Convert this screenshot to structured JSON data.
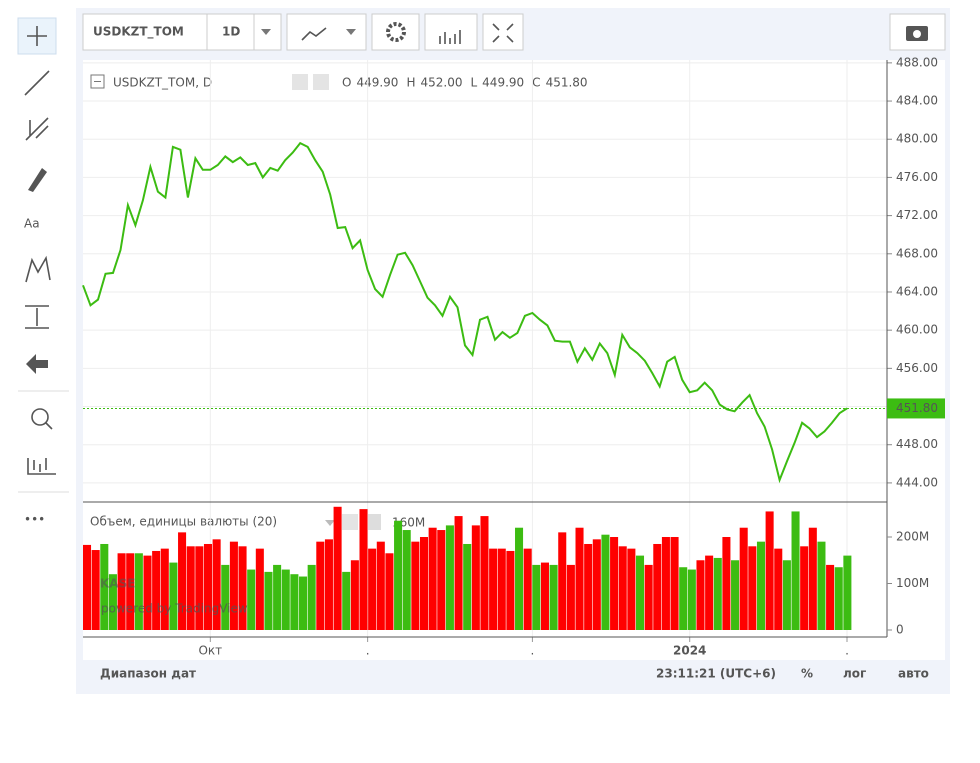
{
  "toolbar": {
    "symbol": "USDKZT_TOM",
    "interval": "1D"
  },
  "header": {
    "title": "USDKZT_TOM, D",
    "ohlc": [
      {
        "key": "O",
        "value": "449.90"
      },
      {
        "key": "H",
        "value": "452.00"
      },
      {
        "key": "L",
        "value": "449.90"
      },
      {
        "key": "C",
        "value": "451.80"
      }
    ]
  },
  "watermark": {
    "logo": "KASE",
    "text": "powered by TradingView"
  },
  "footer": {
    "range": "Диапазон дат",
    "time": "23:11:21 (UTC+6)",
    "percent": "%",
    "log": "лог",
    "auto": "авто"
  },
  "chart_data": [
    {
      "type": "line",
      "color": "#3cbc12",
      "last_label": "451.80",
      "categories": [
        null,
        null,
        null,
        null,
        null,
        null,
        null,
        null,
        null,
        null,
        null,
        null,
        null,
        null,
        null,
        null,
        null,
        "Окт",
        null,
        null,
        null,
        null,
        null,
        null,
        null,
        null,
        null,
        null,
        null,
        null,
        null,
        null,
        null,
        null,
        null,
        null,
        null,
        null,
        ".",
        null,
        null,
        null,
        null,
        null,
        null,
        null,
        null,
        null,
        null,
        null,
        null,
        null,
        null,
        null,
        null,
        null,
        null,
        null,
        null,
        null,
        ".",
        null,
        null,
        null,
        null,
        null,
        null,
        null,
        null,
        null,
        null,
        null,
        null,
        null,
        null,
        null,
        null,
        null,
        null,
        null,
        null,
        "2024",
        null,
        null,
        null,
        null,
        null,
        null,
        null,
        null,
        null,
        null,
        null,
        null,
        null,
        null,
        null,
        null,
        null,
        null,
        null,
        null,
        "."
      ],
      "values": [
        464.7,
        462.6,
        463.2,
        465.9,
        466.0,
        468.4,
        473.1,
        471.0,
        473.6,
        477.1,
        474.5,
        473.9,
        479.2,
        478.9,
        473.9,
        478.0,
        476.8,
        476.8,
        477.3,
        478.2,
        477.6,
        478.1,
        477.3,
        477.5,
        476.0,
        477.0,
        476.7,
        477.8,
        478.6,
        479.6,
        479.2,
        477.8,
        476.6,
        474.2,
        470.7,
        470.8,
        468.6,
        469.4,
        466.3,
        464.3,
        463.5,
        465.8,
        467.9,
        468.1,
        466.8,
        465.1,
        463.4,
        462.6,
        461.5,
        463.5,
        462.4,
        458.4,
        457.4,
        461.1,
        461.4,
        459.0,
        459.8,
        459.2,
        459.7,
        461.5,
        461.8,
        461.1,
        460.5,
        458.9,
        458.8,
        458.8,
        456.7,
        458.1,
        456.9,
        458.6,
        457.6,
        455.3,
        459.5,
        458.2,
        457.6,
        456.8,
        455.5,
        454.1,
        456.7,
        457.2,
        454.8,
        453.5,
        453.7,
        454.5,
        453.7,
        452.2,
        451.7,
        451.5,
        452.4,
        453.2,
        451.3,
        449.9,
        447.5,
        444.3,
        446.3,
        448.2,
        450.3,
        449.7,
        448.8,
        449.4,
        450.3,
        451.3,
        451.8
      ],
      "ylim": [
        442.0,
        488.3
      ],
      "yticks": [
        {
          "value": 444,
          "label": "444.00"
        },
        {
          "value": 448,
          "label": "448.00"
        },
        {
          "value": 452,
          "label": "452.00"
        },
        {
          "value": 456,
          "label": "456.00"
        },
        {
          "value": 460,
          "label": "460.00"
        },
        {
          "value": 464,
          "label": "464.00"
        },
        {
          "value": 468,
          "label": "468.00"
        },
        {
          "value": 472,
          "label": "472.00"
        },
        {
          "value": 476,
          "label": "476.00"
        },
        {
          "value": 480,
          "label": "480.00"
        },
        {
          "value": 484,
          "label": "484.00"
        },
        {
          "value": 488,
          "label": "488.00"
        }
      ],
      "grid": true
    },
    {
      "type": "bar",
      "title": "Объем, единицы валюты (20)",
      "annotation": "160M",
      "values": [
        183,
        172,
        185,
        120,
        165,
        165,
        165,
        160,
        170,
        175,
        145,
        210,
        180,
        180,
        185,
        195,
        140,
        190,
        180,
        130,
        175,
        125,
        140,
        130,
        120,
        115,
        140,
        190,
        195,
        265,
        125,
        150,
        260,
        175,
        190,
        165,
        235,
        215,
        190,
        200,
        220,
        215,
        225,
        245,
        185,
        225,
        245,
        175,
        175,
        170,
        220,
        175,
        140,
        145,
        140,
        210,
        140,
        220,
        185,
        195,
        205,
        200,
        180,
        175,
        160,
        140,
        185,
        200,
        200,
        135,
        130,
        150,
        160,
        155,
        200,
        150,
        220,
        180,
        190,
        255,
        175,
        150,
        255,
        180,
        220,
        190,
        140,
        135,
        160
      ],
      "colors": [
        "#ff0000",
        "#ff0000",
        "#3cbc12",
        "#3cbc12",
        "#ff0000",
        "#ff0000",
        "#3cbc12",
        "#ff0000",
        "#ff0000",
        "#ff0000",
        "#3cbc12",
        "#ff0000",
        "#ff0000",
        "#ff0000",
        "#ff0000",
        "#ff0000",
        "#3cbc12",
        "#ff0000",
        "#ff0000",
        "#3cbc12",
        "#ff0000",
        "#3cbc12",
        "#3cbc12",
        "#3cbc12",
        "#3cbc12",
        "#3cbc12",
        "#3cbc12",
        "#ff0000",
        "#ff0000",
        "#ff0000",
        "#3cbc12",
        "#ff0000",
        "#ff0000",
        "#ff0000",
        "#ff0000",
        "#ff0000",
        "#3cbc12",
        "#3cbc12",
        "#ff0000",
        "#ff0000",
        "#ff0000",
        "#ff0000",
        "#3cbc12",
        "#ff0000",
        "#3cbc12",
        "#ff0000",
        "#ff0000",
        "#ff0000",
        "#ff0000",
        "#ff0000",
        "#3cbc12",
        "#ff0000",
        "#3cbc12",
        "#ff0000",
        "#3cbc12",
        "#ff0000",
        "#ff0000",
        "#ff0000",
        "#ff0000",
        "#ff0000",
        "#3cbc12",
        "#ff0000",
        "#ff0000",
        "#ff0000",
        "#3cbc12",
        "#ff0000",
        "#ff0000",
        "#ff0000",
        "#ff0000",
        "#3cbc12",
        "#3cbc12",
        "#ff0000",
        "#ff0000",
        "#3cbc12",
        "#ff0000",
        "#3cbc12",
        "#ff0000",
        "#ff0000",
        "#3cbc12",
        "#ff0000",
        "#ff0000",
        "#3cbc12",
        "#3cbc12",
        "#ff0000",
        "#ff0000",
        "#3cbc12",
        "#ff0000",
        "#3cbc12",
        "#3cbc12"
      ],
      "ylim": [
        0,
        271
      ],
      "yticks": [
        0,
        {
          "value": 100,
          "label": "100M"
        },
        {
          "value": 200,
          "label": "200M"
        }
      ]
    }
  ]
}
